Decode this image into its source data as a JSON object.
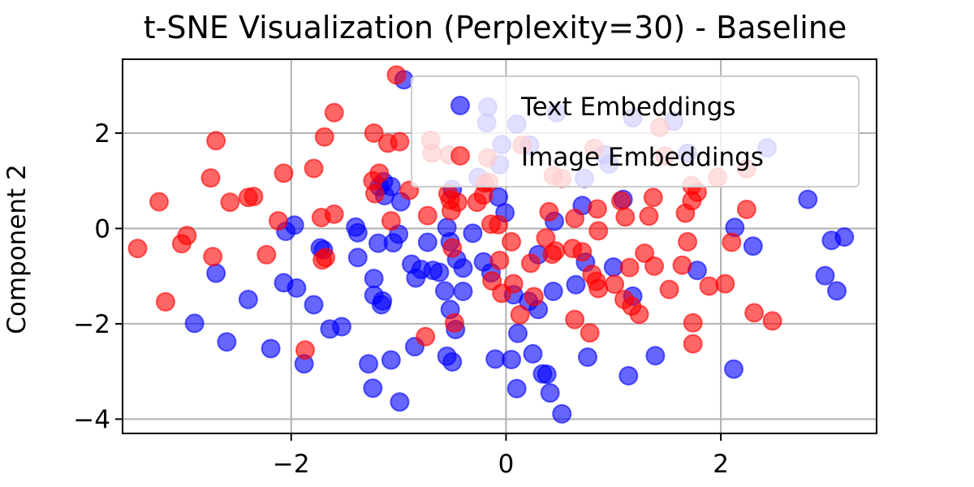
{
  "chart_data": {
    "type": "scatter",
    "title": "t-SNE Visualization (Perplexity=30) - Baseline",
    "xlabel": "",
    "ylabel": "Component 2",
    "xlim": [
      -3.57,
      3.45
    ],
    "ylim": [
      -4.3,
      3.55
    ],
    "x_ticks": [
      -2,
      0,
      2
    ],
    "x_tick_labels": [
      "−2",
      "0",
      "2"
    ],
    "y_ticks": [
      -4,
      -2,
      0,
      2
    ],
    "y_tick_labels": [
      "−4",
      "−2",
      "0",
      "2"
    ],
    "grid": true,
    "legend_position": "upper-right",
    "series": [
      {
        "name": "Text Embeddings",
        "color": "#0000ff",
        "opacity": 0.6,
        "points": [
          [
            -0.95,
            3.12
          ],
          [
            -0.17,
            2.55
          ],
          [
            -0.18,
            2.22
          ],
          [
            0.1,
            2.19
          ],
          [
            0.47,
            2.43
          ],
          [
            1.18,
            2.32
          ],
          [
            1.56,
            2.25
          ],
          [
            0.22,
            1.75
          ],
          [
            -0.04,
            1.76
          ],
          [
            0.92,
            1.55
          ],
          [
            1.69,
            1.58
          ],
          [
            2.43,
            1.69
          ],
          [
            -0.06,
            1.34
          ],
          [
            0.73,
            1.05
          ],
          [
            0.96,
            1.35
          ],
          [
            -1.18,
            0.88
          ],
          [
            -1.14,
            0.98
          ],
          [
            -1.07,
            0.88
          ],
          [
            -1.13,
            0.69
          ],
          [
            -0.98,
            0.56
          ],
          [
            -0.26,
            1.07
          ],
          [
            -0.5,
            0.82
          ],
          [
            -0.07,
            0.66
          ],
          [
            0.71,
            0.48
          ],
          [
            1.09,
            0.61
          ],
          [
            2.81,
            0.61
          ],
          [
            -1.97,
            0.07
          ],
          [
            -2.05,
            -0.06
          ],
          [
            -1.4,
            0.03
          ],
          [
            -1.38,
            -0.09
          ],
          [
            -1.0,
            -0.12
          ],
          [
            -0.55,
            0.02
          ],
          [
            -0.31,
            -0.1
          ],
          [
            -0.01,
            0.33
          ],
          [
            0.45,
            0.15
          ],
          [
            2.13,
            0.02
          ],
          [
            3.03,
            -0.25
          ],
          [
            3.15,
            -0.18
          ],
          [
            -1.73,
            -0.41
          ],
          [
            -1.7,
            -0.45
          ],
          [
            -1.19,
            -0.31
          ],
          [
            -1.05,
            -0.3
          ],
          [
            -0.88,
            -0.75
          ],
          [
            -0.84,
            -1.04
          ],
          [
            -0.79,
            -0.86
          ],
          [
            -0.73,
            -0.29
          ],
          [
            -0.68,
            -0.88
          ],
          [
            -0.52,
            -0.28
          ],
          [
            -0.46,
            -0.65
          ],
          [
            -0.4,
            -0.83
          ],
          [
            -0.21,
            -0.7
          ],
          [
            -0.14,
            -0.93
          ],
          [
            0.3,
            -0.55
          ],
          [
            0.74,
            -0.71
          ],
          [
            1.0,
            -0.81
          ],
          [
            2.3,
            -0.37
          ],
          [
            1.78,
            -0.88
          ],
          [
            -2.7,
            -0.94
          ],
          [
            -2.07,
            -1.14
          ],
          [
            -1.95,
            -1.25
          ],
          [
            -1.38,
            -0.61
          ],
          [
            -1.23,
            -1.05
          ],
          [
            -1.23,
            -1.4
          ],
          [
            -1.15,
            -1.52
          ],
          [
            -1.16,
            -1.6
          ],
          [
            -0.62,
            -0.92
          ],
          [
            -0.57,
            -1.31
          ],
          [
            -0.4,
            -1.32
          ],
          [
            -0.52,
            -1.7
          ],
          [
            -0.47,
            -2.12
          ],
          [
            0.07,
            -1.39
          ],
          [
            0.21,
            -1.53
          ],
          [
            0.44,
            -1.32
          ],
          [
            0.65,
            -1.18
          ],
          [
            0.3,
            -1.7
          ],
          [
            2.97,
            -0.99
          ],
          [
            3.08,
            -1.31
          ],
          [
            -2.4,
            -1.49
          ],
          [
            -1.79,
            -1.6
          ],
          [
            -1.64,
            -2.11
          ],
          [
            -1.53,
            -2.06
          ],
          [
            -2.9,
            -1.99
          ],
          [
            -2.6,
            -2.38
          ],
          [
            -2.19,
            -2.52
          ],
          [
            -1.88,
            -2.84
          ],
          [
            -0.85,
            -2.48
          ],
          [
            -1.28,
            -2.84
          ],
          [
            -1.07,
            -2.76
          ],
          [
            -0.55,
            -2.68
          ],
          [
            -0.5,
            -2.8
          ],
          [
            -0.1,
            -2.74
          ],
          [
            0.05,
            -2.75
          ],
          [
            0.11,
            -2.2
          ],
          [
            0.25,
            -2.63
          ],
          [
            0.34,
            -3.05
          ],
          [
            0.38,
            -3.06
          ],
          [
            0.41,
            -3.45
          ],
          [
            0.1,
            -3.36
          ],
          [
            0.76,
            -2.7
          ],
          [
            1.39,
            -2.67
          ],
          [
            1.14,
            -3.09
          ],
          [
            2.12,
            -2.95
          ],
          [
            -1.24,
            -3.35
          ],
          [
            -0.99,
            -3.64
          ],
          [
            0.52,
            -3.89
          ],
          [
            1.18,
            -1.42
          ]
        ]
      },
      {
        "name": "Image Embeddings",
        "color": "#ff0000",
        "opacity": 0.6,
        "points": [
          [
            -1.02,
            3.22
          ],
          [
            -1.6,
            2.43
          ],
          [
            -2.7,
            1.84
          ],
          [
            -1.69,
            1.92
          ],
          [
            -1.23,
            2.0
          ],
          [
            -1.1,
            1.79
          ],
          [
            -0.7,
            1.85
          ],
          [
            -0.99,
            1.82
          ],
          [
            -0.69,
            1.58
          ],
          [
            -0.53,
            1.54
          ],
          [
            -0.17,
            1.48
          ],
          [
            0.15,
            1.75
          ],
          [
            0.82,
            1.68
          ],
          [
            1.48,
            1.52
          ],
          [
            1.43,
            2.12
          ],
          [
            -2.75,
            1.06
          ],
          [
            -2.07,
            1.16
          ],
          [
            -1.79,
            1.26
          ],
          [
            -1.24,
            1.0
          ],
          [
            -1.18,
            1.16
          ],
          [
            -1.22,
            0.73
          ],
          [
            -0.9,
            0.8
          ],
          [
            -0.54,
            0.73
          ],
          [
            -0.52,
            0.6
          ],
          [
            -0.21,
            0.7
          ],
          [
            -0.16,
            0.97
          ],
          [
            0.44,
            1.11
          ],
          [
            0.52,
            1.05
          ],
          [
            1.07,
            0.58
          ],
          [
            1.37,
            0.65
          ],
          [
            1.73,
            0.58
          ],
          [
            1.78,
            0.76
          ],
          [
            1.73,
            0.9
          ],
          [
            1.97,
            1.07
          ],
          [
            2.24,
            1.25
          ],
          [
            -3.23,
            0.56
          ],
          [
            -2.57,
            0.55
          ],
          [
            -2.4,
            0.65
          ],
          [
            -2.35,
            0.67
          ],
          [
            -2.12,
            0.16
          ],
          [
            -1.72,
            0.23
          ],
          [
            -1.6,
            0.3
          ],
          [
            -1.07,
            0.16
          ],
          [
            -0.73,
            0.27
          ],
          [
            -0.51,
            0.37
          ],
          [
            -0.27,
            0.55
          ],
          [
            -0.07,
            0.08
          ],
          [
            -0.14,
            0.09
          ],
          [
            0.4,
            0.35
          ],
          [
            0.64,
            0.21
          ],
          [
            0.85,
            0.41
          ],
          [
            1.11,
            0.24
          ],
          [
            1.33,
            0.26
          ],
          [
            1.67,
            0.32
          ],
          [
            2.24,
            0.4
          ],
          [
            -3.43,
            -0.42
          ],
          [
            -3.02,
            -0.32
          ],
          [
            -2.97,
            -0.15
          ],
          [
            -2.73,
            -0.59
          ],
          [
            -2.23,
            -0.55
          ],
          [
            -1.71,
            -0.66
          ],
          [
            -1.68,
            -0.61
          ],
          [
            -0.5,
            -0.41
          ],
          [
            0.05,
            -0.28
          ],
          [
            -0.06,
            -0.67
          ],
          [
            0.23,
            -0.73
          ],
          [
            0.37,
            -0.2
          ],
          [
            0.46,
            -0.47
          ],
          [
            0.43,
            -0.54
          ],
          [
            0.62,
            -0.42
          ],
          [
            0.71,
            -0.49
          ],
          [
            0.86,
            -0.05
          ],
          [
            1.15,
            -0.82
          ],
          [
            1.29,
            -0.52
          ],
          [
            1.38,
            -0.79
          ],
          [
            1.64,
            -0.77
          ],
          [
            1.69,
            -0.28
          ],
          [
            2.1,
            -0.29
          ],
          [
            -3.17,
            -1.54
          ],
          [
            -1.87,
            -2.55
          ],
          [
            -0.75,
            -2.27
          ],
          [
            -0.48,
            -1.98
          ],
          [
            -0.04,
            -1.36
          ],
          [
            0.13,
            -1.81
          ],
          [
            0.26,
            -1.43
          ],
          [
            0.64,
            -1.91
          ],
          [
            0.8,
            -0.96
          ],
          [
            0.84,
            -1.11
          ],
          [
            0.86,
            -1.26
          ],
          [
            1.01,
            -1.17
          ],
          [
            1.1,
            -1.49
          ],
          [
            1.17,
            -1.63
          ],
          [
            1.24,
            -1.8
          ],
          [
            1.52,
            -1.28
          ],
          [
            1.74,
            -1.98
          ],
          [
            1.74,
            -2.42
          ],
          [
            1.89,
            -1.21
          ],
          [
            2.04,
            -1.16
          ],
          [
            2.31,
            -1.77
          ],
          [
            2.48,
            -1.94
          ],
          [
            0.78,
            -2.19
          ],
          [
            -0.13,
            -1.1
          ],
          [
            0.07,
            -1.16
          ],
          [
            -0.2,
            0.95
          ],
          [
            -0.45,
            0.55
          ]
        ]
      }
    ]
  }
}
